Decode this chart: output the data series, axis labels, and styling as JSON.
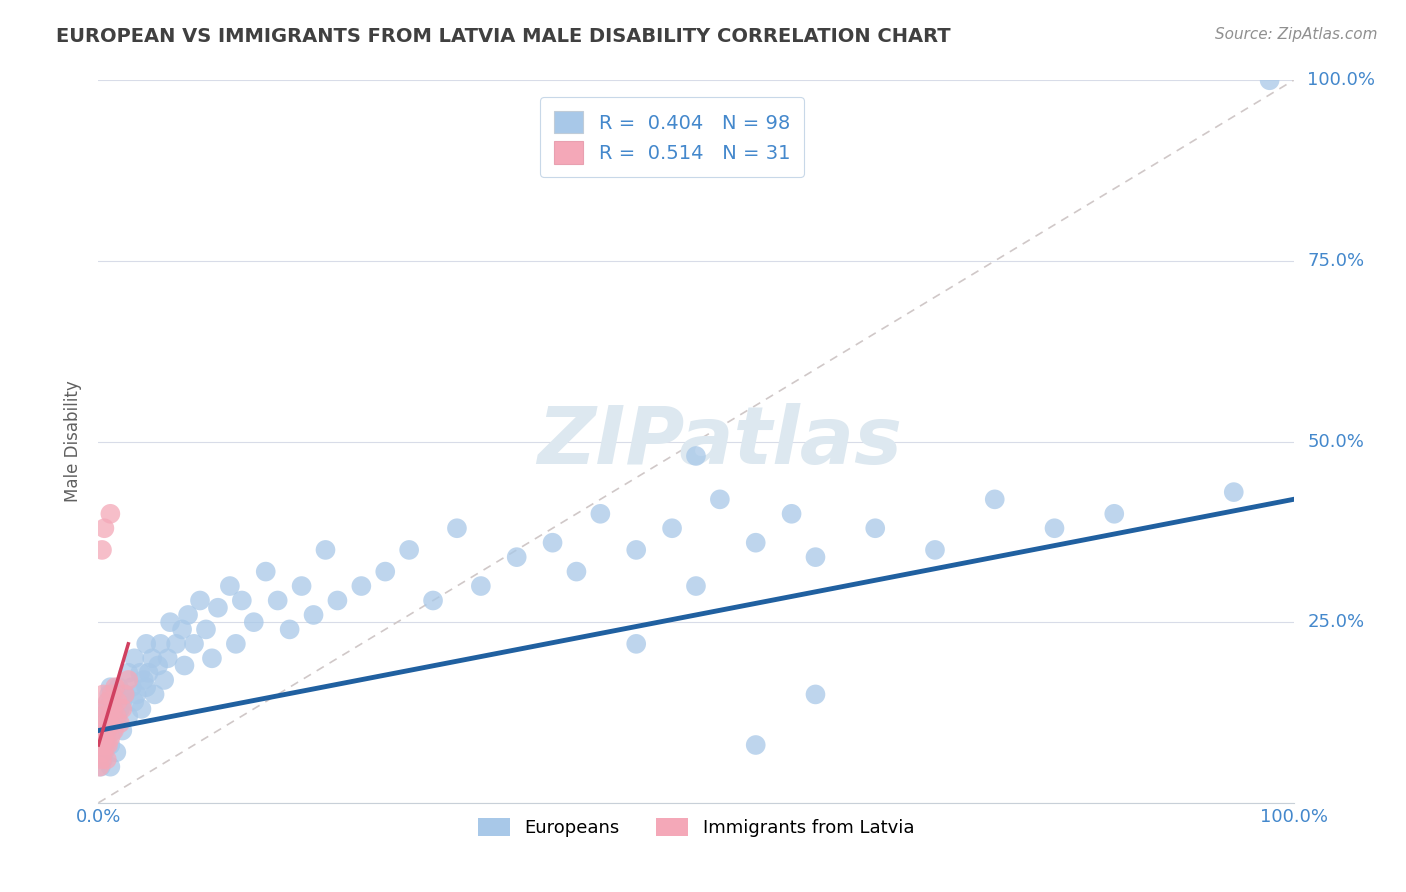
{
  "title": "EUROPEAN VS IMMIGRANTS FROM LATVIA MALE DISABILITY CORRELATION CHART",
  "source": "Source: ZipAtlas.com",
  "xlabel": "",
  "ylabel": "Male Disability",
  "watermark": "ZIPatlas",
  "xlim": [
    0,
    1
  ],
  "ylim": [
    0,
    1
  ],
  "R_european": 0.404,
  "N_european": 98,
  "R_latvia": 0.514,
  "N_latvia": 31,
  "european_color": "#a8c8e8",
  "latvia_color": "#f4a8b8",
  "european_line_color": "#2060a0",
  "latvia_line_color": "#d04060",
  "legend_european": "Europeans",
  "legend_latvia": "Immigrants from Latvia",
  "title_color": "#404040",
  "source_color": "#909090",
  "grid_color": "#d8dce8",
  "ref_line_color": "#d0c8c8",
  "axis_label_color": "#4488cc",
  "eu_x": [
    0.002,
    0.003,
    0.004,
    0.004,
    0.005,
    0.005,
    0.005,
    0.006,
    0.006,
    0.007,
    0.007,
    0.008,
    0.008,
    0.009,
    0.009,
    0.01,
    0.01,
    0.01,
    0.01,
    0.012,
    0.012,
    0.013,
    0.014,
    0.015,
    0.015,
    0.016,
    0.017,
    0.018,
    0.02,
    0.02,
    0.022,
    0.025,
    0.025,
    0.028,
    0.03,
    0.03,
    0.032,
    0.035,
    0.036,
    0.038,
    0.04,
    0.04,
    0.042,
    0.045,
    0.047,
    0.05,
    0.052,
    0.055,
    0.058,
    0.06,
    0.065,
    0.07,
    0.072,
    0.075,
    0.08,
    0.085,
    0.09,
    0.095,
    0.1,
    0.11,
    0.115,
    0.12,
    0.13,
    0.14,
    0.15,
    0.16,
    0.17,
    0.18,
    0.19,
    0.2,
    0.22,
    0.24,
    0.26,
    0.28,
    0.3,
    0.32,
    0.35,
    0.38,
    0.4,
    0.42,
    0.45,
    0.48,
    0.5,
    0.52,
    0.55,
    0.58,
    0.6,
    0.65,
    0.7,
    0.75,
    0.8,
    0.85,
    0.5,
    0.45,
    0.55,
    0.6,
    0.95,
    0.98
  ],
  "eu_y": [
    0.05,
    0.08,
    0.06,
    0.1,
    0.07,
    0.09,
    0.12,
    0.08,
    0.11,
    0.09,
    0.13,
    0.1,
    0.14,
    0.11,
    0.15,
    0.08,
    0.12,
    0.16,
    0.05,
    0.13,
    0.1,
    0.14,
    0.11,
    0.15,
    0.07,
    0.12,
    0.16,
    0.13,
    0.14,
    0.1,
    0.15,
    0.12,
    0.18,
    0.16,
    0.14,
    0.2,
    0.15,
    0.18,
    0.13,
    0.17,
    0.16,
    0.22,
    0.18,
    0.2,
    0.15,
    0.19,
    0.22,
    0.17,
    0.2,
    0.25,
    0.22,
    0.24,
    0.19,
    0.26,
    0.22,
    0.28,
    0.24,
    0.2,
    0.27,
    0.3,
    0.22,
    0.28,
    0.25,
    0.32,
    0.28,
    0.24,
    0.3,
    0.26,
    0.35,
    0.28,
    0.3,
    0.32,
    0.35,
    0.28,
    0.38,
    0.3,
    0.34,
    0.36,
    0.32,
    0.4,
    0.35,
    0.38,
    0.3,
    0.42,
    0.36,
    0.4,
    0.34,
    0.38,
    0.35,
    0.42,
    0.38,
    0.4,
    0.48,
    0.22,
    0.08,
    0.15,
    0.43,
    1.0
  ],
  "lv_x": [
    0.001,
    0.002,
    0.002,
    0.003,
    0.003,
    0.003,
    0.004,
    0.004,
    0.004,
    0.005,
    0.005,
    0.006,
    0.006,
    0.007,
    0.007,
    0.008,
    0.008,
    0.009,
    0.01,
    0.01,
    0.011,
    0.012,
    0.013,
    0.014,
    0.015,
    0.016,
    0.018,
    0.02,
    0.022,
    0.025,
    0.01
  ],
  "lv_y": [
    0.05,
    0.08,
    0.12,
    0.06,
    0.1,
    0.35,
    0.07,
    0.09,
    0.15,
    0.38,
    0.11,
    0.08,
    0.13,
    0.1,
    0.06,
    0.14,
    0.08,
    0.11,
    0.12,
    0.09,
    0.15,
    0.13,
    0.1,
    0.16,
    0.12,
    0.14,
    0.11,
    0.13,
    0.15,
    0.17,
    0.4
  ],
  "eu_trend_x": [
    0.0,
    1.0
  ],
  "eu_trend_y": [
    0.1,
    0.42
  ],
  "lv_trend_x": [
    0.0,
    0.025
  ],
  "lv_trend_y": [
    0.08,
    0.22
  ]
}
